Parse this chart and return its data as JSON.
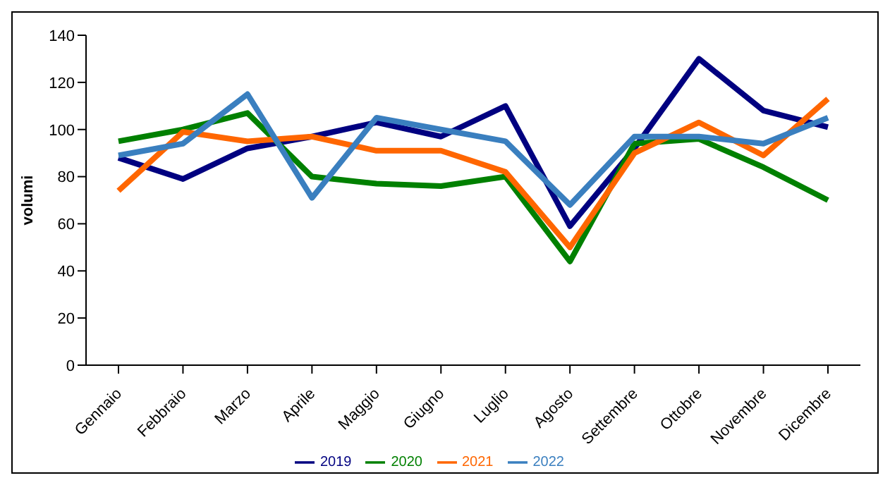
{
  "chart_data": {
    "type": "line",
    "ylabel": "volumi",
    "categories": [
      "Gennaio",
      "Febbraio",
      "Marzo",
      "Aprile",
      "Maggio",
      "Giugno",
      "Luglio",
      "Agosto",
      "Settembre",
      "Ottobre",
      "Novembre",
      "Dicembre"
    ],
    "series": [
      {
        "name": "2019",
        "color": "#000080",
        "values": [
          88,
          79,
          92,
          97,
          103,
          97,
          110,
          59,
          92,
          130,
          108,
          101
        ]
      },
      {
        "name": "2020",
        "color": "#008000",
        "values": [
          95,
          100,
          107,
          80,
          77,
          76,
          80,
          44,
          94,
          96,
          84,
          70
        ]
      },
      {
        "name": "2021",
        "color": "#ff6600",
        "values": [
          74,
          99,
          95,
          97,
          91,
          91,
          82,
          50,
          90,
          103,
          89,
          113
        ]
      },
      {
        "name": "2022",
        "color": "#3a7fbf",
        "values": [
          89,
          94,
          115,
          71,
          105,
          100,
          95,
          68,
          97,
          97,
          94,
          105
        ]
      }
    ],
    "ylim": [
      0,
      140
    ],
    "yticks": [
      0,
      20,
      40,
      60,
      80,
      100,
      120,
      140
    ],
    "grid": false,
    "legend": "bottom",
    "marker": "none",
    "line_style": "solid"
  }
}
